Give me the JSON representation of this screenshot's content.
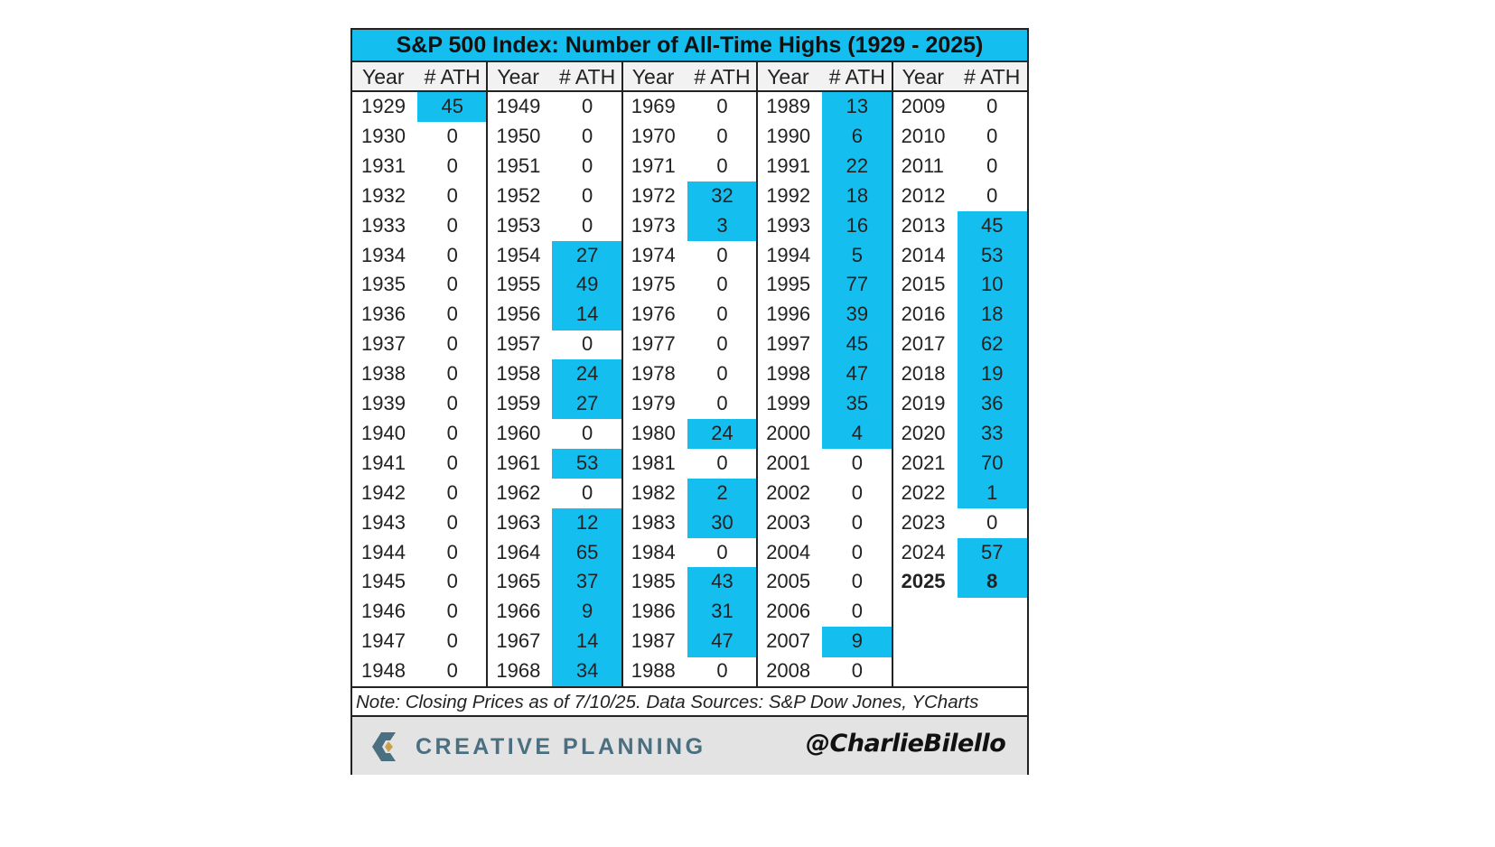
{
  "table": {
    "title": "S&P 500 Index: Number of All-Time Highs (1929 - 2025)",
    "columns": [
      "Year",
      "# ATH"
    ],
    "groups": [
      [
        [
          1929,
          45
        ],
        [
          1930,
          0
        ],
        [
          1931,
          0
        ],
        [
          1932,
          0
        ],
        [
          1933,
          0
        ],
        [
          1934,
          0
        ],
        [
          1935,
          0
        ],
        [
          1936,
          0
        ],
        [
          1937,
          0
        ],
        [
          1938,
          0
        ],
        [
          1939,
          0
        ],
        [
          1940,
          0
        ],
        [
          1941,
          0
        ],
        [
          1942,
          0
        ],
        [
          1943,
          0
        ],
        [
          1944,
          0
        ],
        [
          1945,
          0
        ],
        [
          1946,
          0
        ],
        [
          1947,
          0
        ],
        [
          1948,
          0
        ]
      ],
      [
        [
          1949,
          0
        ],
        [
          1950,
          0
        ],
        [
          1951,
          0
        ],
        [
          1952,
          0
        ],
        [
          1953,
          0
        ],
        [
          1954,
          27
        ],
        [
          1955,
          49
        ],
        [
          1956,
          14
        ],
        [
          1957,
          0
        ],
        [
          1958,
          24
        ],
        [
          1959,
          27
        ],
        [
          1960,
          0
        ],
        [
          1961,
          53
        ],
        [
          1962,
          0
        ],
        [
          1963,
          12
        ],
        [
          1964,
          65
        ],
        [
          1965,
          37
        ],
        [
          1966,
          9
        ],
        [
          1967,
          14
        ],
        [
          1968,
          34
        ]
      ],
      [
        [
          1969,
          0
        ],
        [
          1970,
          0
        ],
        [
          1971,
          0
        ],
        [
          1972,
          32
        ],
        [
          1973,
          3
        ],
        [
          1974,
          0
        ],
        [
          1975,
          0
        ],
        [
          1976,
          0
        ],
        [
          1977,
          0
        ],
        [
          1978,
          0
        ],
        [
          1979,
          0
        ],
        [
          1980,
          24
        ],
        [
          1981,
          0
        ],
        [
          1982,
          2
        ],
        [
          1983,
          30
        ],
        [
          1984,
          0
        ],
        [
          1985,
          43
        ],
        [
          1986,
          31
        ],
        [
          1987,
          47
        ],
        [
          1988,
          0
        ]
      ],
      [
        [
          1989,
          13
        ],
        [
          1990,
          6
        ],
        [
          1991,
          22
        ],
        [
          1992,
          18
        ],
        [
          1993,
          16
        ],
        [
          1994,
          5
        ],
        [
          1995,
          77
        ],
        [
          1996,
          39
        ],
        [
          1997,
          45
        ],
        [
          1998,
          47
        ],
        [
          1999,
          35
        ],
        [
          2000,
          4
        ],
        [
          2001,
          0
        ],
        [
          2002,
          0
        ],
        [
          2003,
          0
        ],
        [
          2004,
          0
        ],
        [
          2005,
          0
        ],
        [
          2006,
          0
        ],
        [
          2007,
          9
        ],
        [
          2008,
          0
        ]
      ],
      [
        [
          2009,
          0
        ],
        [
          2010,
          0
        ],
        [
          2011,
          0
        ],
        [
          2012,
          0
        ],
        [
          2013,
          45
        ],
        [
          2014,
          53
        ],
        [
          2015,
          10
        ],
        [
          2016,
          18
        ],
        [
          2017,
          62
        ],
        [
          2018,
          19
        ],
        [
          2019,
          36
        ],
        [
          2020,
          33
        ],
        [
          2021,
          70
        ],
        [
          2022,
          1
        ],
        [
          2023,
          0
        ],
        [
          2024,
          57
        ],
        [
          2025,
          8
        ]
      ]
    ],
    "note": "Note: Closing Prices as of 7/10/25. Data Sources: S&P Dow Jones, YCharts"
  },
  "footer": {
    "brand": "CREATIVE PLANNING",
    "handle": "@CharlieBilello"
  }
}
